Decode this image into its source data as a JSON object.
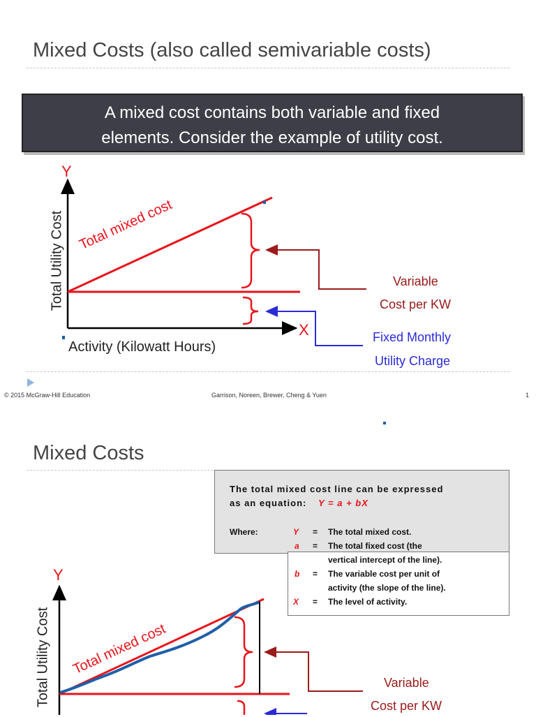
{
  "slide1": {
    "title": "Mixed Costs (also called semivariable costs)",
    "callout_line1": "A mixed cost contains both variable and fixed",
    "callout_line2": "elements.  Consider the example of utility cost.",
    "y_axis_letter": "Y",
    "x_axis_letter": "X",
    "y_axis_title": "Total Utility Cost",
    "x_axis_title": "Activity (Kilowatt Hours)",
    "line_label": "Total mixed cost",
    "variable_label_1": "Variable",
    "variable_label_2": "Cost per KW",
    "fixed_label_1": "Fixed Monthly",
    "fixed_label_2": "Utility Charge"
  },
  "footer": {
    "copyright": "© 2015 McGraw-Hill Education",
    "authors": "Garrison, Noreen, Brewer, Cheng & Yuen",
    "page": "1"
  },
  "slide2": {
    "title": "Mixed Costs",
    "eq_line1": "The total mixed cost line can be expressed",
    "eq_line2_prefix": "as an equation:",
    "eq_formula": "Y = a + bX",
    "where_label": "Where:",
    "defs": [
      {
        "sym": "Y",
        "eq": "=",
        "text1": "The total mixed cost.",
        "text2": ""
      },
      {
        "sym": "a",
        "eq": "=",
        "text1": "The total fixed cost (the",
        "text2": "vertical intercept of the line)."
      },
      {
        "sym": "b",
        "eq": "=",
        "text1": "The variable cost per unit of",
        "text2": "activity (the slope of the line)."
      },
      {
        "sym": "X",
        "eq": "=",
        "text1": "The level of activity.",
        "text2": ""
      }
    ],
    "y_axis_letter": "Y",
    "y_axis_title": "Total Utility Cost",
    "line_label": "Total mixed cost",
    "variable_label_1": "Variable",
    "variable_label_2": "Cost per KW"
  },
  "colors": {
    "line_red": "#e8141b",
    "arrow_dark_red": "#9b1a1a",
    "arrow_blue": "#2b2bd6",
    "callout_bg": "#3e3e48",
    "actual_cost_blue": "#1f5fa8"
  }
}
